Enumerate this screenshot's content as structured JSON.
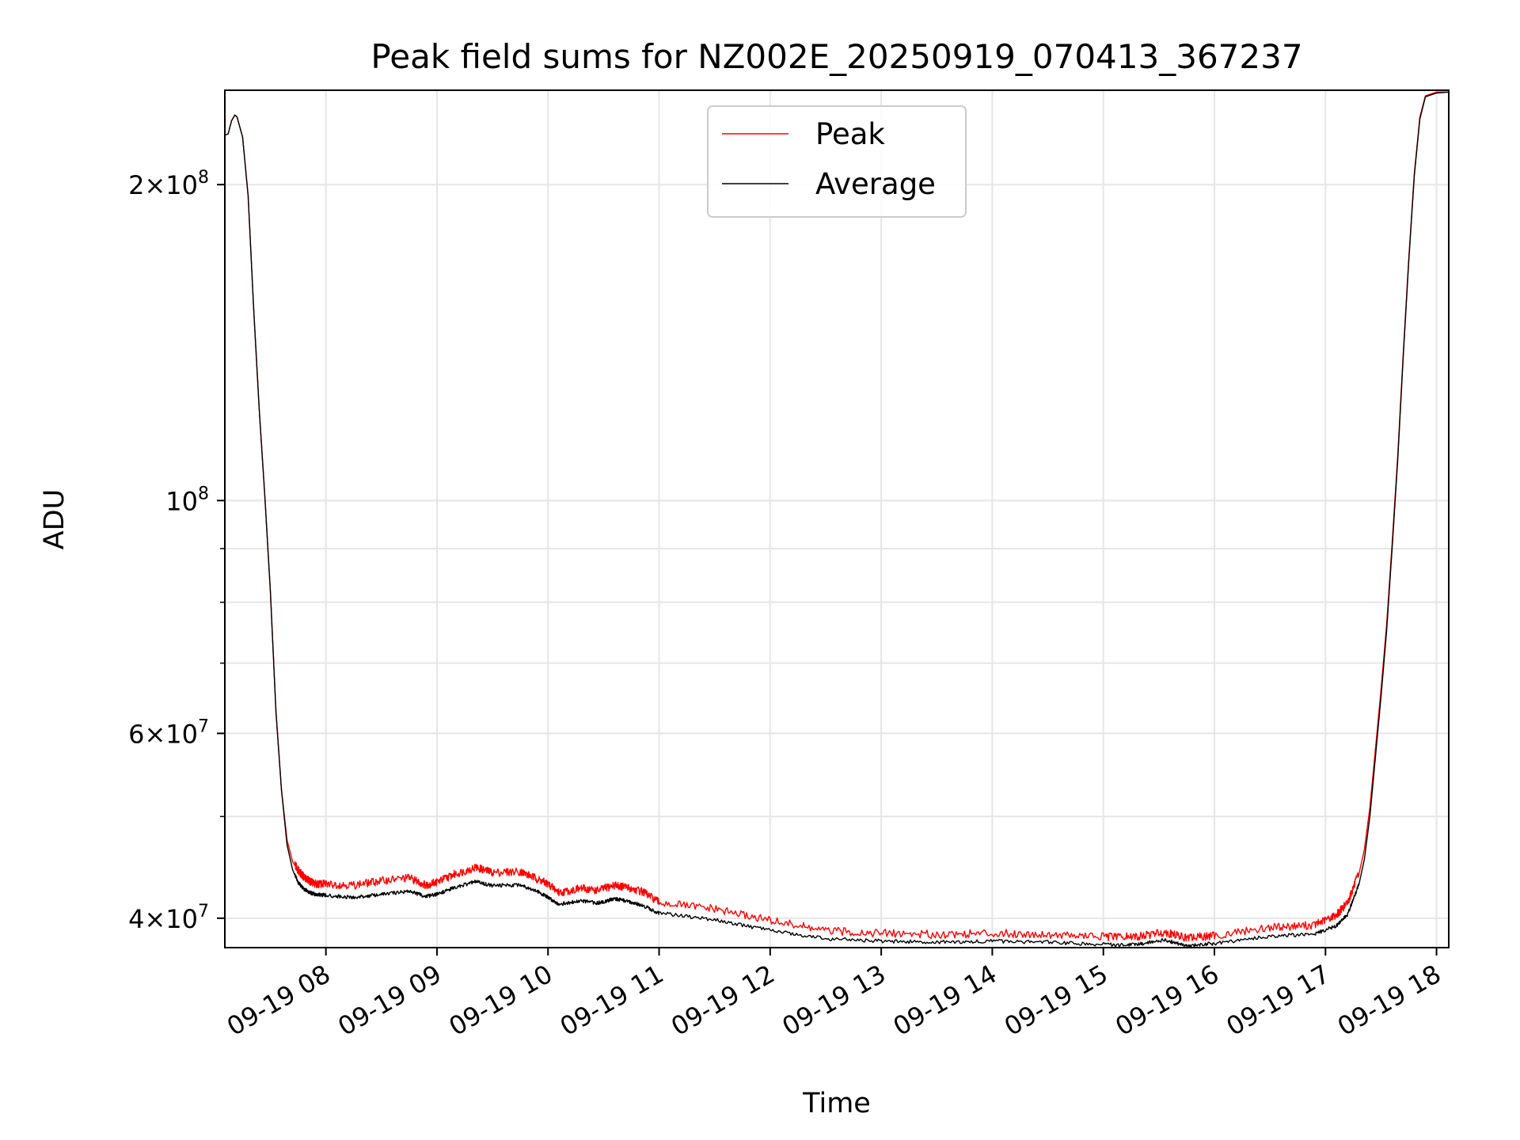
{
  "chart_data": {
    "type": "line",
    "title": "Peak field sums for NZ002E_20250919_070413_367237",
    "xlabel": "Time",
    "ylabel": "ADU",
    "yscale": "log",
    "grid": true,
    "legend_position": "top-center",
    "xlim_hours": [
      7.09,
      18.11
    ],
    "ylim": [
      37500000,
      246000000
    ],
    "x_ticks": [
      {
        "value": 8,
        "label": "09-19 08"
      },
      {
        "value": 9,
        "label": "09-19 09"
      },
      {
        "value": 10,
        "label": "09-19 10"
      },
      {
        "value": 11,
        "label": "09-19 11"
      },
      {
        "value": 12,
        "label": "09-19 12"
      },
      {
        "value": 13,
        "label": "09-19 13"
      },
      {
        "value": 14,
        "label": "09-19 14"
      },
      {
        "value": 15,
        "label": "09-19 15"
      },
      {
        "value": 16,
        "label": "09-19 16"
      },
      {
        "value": 17,
        "label": "09-19 17"
      },
      {
        "value": 18,
        "label": "09-19 18"
      }
    ],
    "y_major_ticks": [
      {
        "value": 40000000,
        "mantissa": "4",
        "exponent": "7"
      },
      {
        "value": 60000000,
        "mantissa": "6",
        "exponent": "7"
      },
      {
        "value": 100000000,
        "mantissa": "",
        "exponent": "8"
      },
      {
        "value": 200000000,
        "mantissa": "2",
        "exponent": "8"
      }
    ],
    "y_minor_ticks": [
      50000000,
      70000000,
      80000000,
      90000000
    ],
    "x_hours": [
      7.09,
      7.12,
      7.15,
      7.18,
      7.2,
      7.25,
      7.3,
      7.35,
      7.4,
      7.45,
      7.5,
      7.55,
      7.6,
      7.65,
      7.7,
      7.75,
      7.8,
      7.85,
      7.9,
      8.0,
      8.25,
      8.5,
      8.75,
      8.9,
      9.0,
      9.15,
      9.35,
      9.5,
      9.75,
      9.9,
      10.0,
      10.1,
      10.3,
      10.45,
      10.6,
      10.7,
      10.85,
      11.0,
      11.5,
      12.0,
      12.5,
      13.0,
      13.5,
      14.0,
      14.5,
      15.0,
      15.3,
      15.55,
      15.75,
      16.0,
      16.5,
      16.9,
      17.1,
      17.2,
      17.3,
      17.35,
      17.4,
      17.45,
      17.5,
      17.55,
      17.6,
      17.65,
      17.7,
      17.75,
      17.8,
      17.85,
      17.9,
      18.0,
      18.11
    ],
    "series": [
      {
        "name": "Peak",
        "color": "#ff0000",
        "values": [
          223000000,
          223500000,
          230000000,
          233000000,
          232000000,
          222000000,
          195000000,
          152000000,
          122000000,
          101000000,
          82000000,
          63000000,
          53000000,
          47500000,
          45300000,
          44300000,
          43700000,
          43300000,
          43000000,
          43000000,
          42900000,
          43300000,
          43600000,
          42900000,
          43200000,
          43900000,
          44600000,
          44100000,
          44200000,
          43500000,
          43000000,
          42200000,
          42600000,
          42400000,
          42900000,
          42700000,
          42300000,
          41300000,
          40700000,
          39700000,
          38800000,
          38600000,
          38500000,
          38600000,
          38500000,
          38300000,
          38300000,
          38700000,
          38200000,
          38400000,
          39100000,
          39300000,
          40200000,
          41300000,
          44000000,
          46500000,
          51000000,
          58000000,
          66000000,
          76000000,
          91000000,
          110000000,
          138000000,
          170000000,
          205000000,
          232000000,
          243000000,
          245000000,
          245000000
        ]
      },
      {
        "name": "Average",
        "color": "#000000",
        "values": [
          223000000,
          223500000,
          230000000,
          233000000,
          232000000,
          222000000,
          195000000,
          152000000,
          122000000,
          101000000,
          82000000,
          63000000,
          53000000,
          47000000,
          44500000,
          43200000,
          42600000,
          42300000,
          42100000,
          42000000,
          41800000,
          42100000,
          42400000,
          41900000,
          42100000,
          42700000,
          43300000,
          42900000,
          43000000,
          42400000,
          41800000,
          41200000,
          41500000,
          41300000,
          41700000,
          41500000,
          41100000,
          40400000,
          39800000,
          38900000,
          38200000,
          38000000,
          37900000,
          38000000,
          37900000,
          37700000,
          37700000,
          38100000,
          37600000,
          37800000,
          38400000,
          38600000,
          39300000,
          40300000,
          43000000,
          45500000,
          50000000,
          57000000,
          65000000,
          75000000,
          90000000,
          109000000,
          137000000,
          169000000,
          204000000,
          231000000,
          242500000,
          244500000,
          245000000
        ]
      }
    ]
  }
}
